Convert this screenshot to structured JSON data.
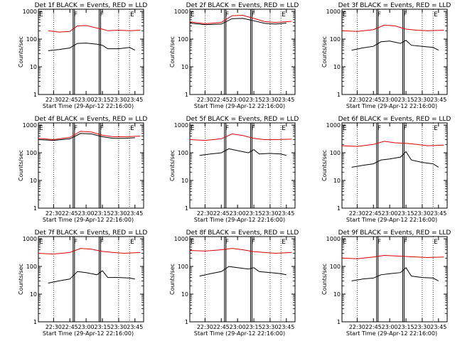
{
  "chart_data": [
    {
      "type": "line",
      "title": "Det 1f BLACK = Events, RED = LLD",
      "xlabel": "Start Time (29-Apr-12 22:16:00)",
      "ylabel": "Counts/sec",
      "x_ticks": [
        "22:30",
        "22:45",
        "23:00",
        "23:15",
        "23:30",
        "23:45"
      ],
      "y_ticks": [
        "1",
        "10",
        "100",
        "1000"
      ],
      "ylim": [
        1,
        1200
      ],
      "y_scale": "log",
      "markers": [
        {
          "label": "E",
          "time": "22:16"
        },
        {
          "label": "F",
          "time": "22:48"
        },
        {
          "label": "F",
          "time": "23:12"
        },
        {
          "label": "E",
          "time": "23:40"
        }
      ],
      "series": [
        {
          "color": "#000000",
          "t": [
            "22:25",
            "22:35",
            "22:45",
            "22:52",
            "23:00",
            "23:10",
            "23:15",
            "23:20",
            "23:30",
            "23:40",
            "23:45"
          ],
          "values": [
            38,
            42,
            48,
            70,
            72,
            65,
            60,
            45,
            45,
            50,
            40
          ]
        },
        {
          "color": "#dd0000",
          "t": [
            "22:25",
            "22:35",
            "22:45",
            "22:52",
            "23:00",
            "23:10",
            "23:15",
            "23:20",
            "23:30",
            "23:40",
            "23:50"
          ],
          "values": [
            200,
            180,
            190,
            300,
            310,
            250,
            230,
            200,
            210,
            200,
            210
          ]
        }
      ]
    },
    {
      "type": "line",
      "title": "Det 2f BLACK = Events, RED = LLD",
      "xlabel": "Start Time (29-Apr-12 22:16:00)",
      "ylabel": "Counts/sec",
      "x_ticks": [
        "22:30",
        "22:45",
        "23:00",
        "23:15",
        "23:30",
        "23:45"
      ],
      "y_ticks": [
        "1",
        "10",
        "100",
        "1000"
      ],
      "ylim": [
        1,
        1200
      ],
      "y_scale": "log",
      "markers": [
        {
          "label": "E",
          "time": "22:16"
        },
        {
          "label": "F",
          "time": "22:48"
        },
        {
          "label": "F",
          "time": "23:12"
        },
        {
          "label": "E",
          "time": "23:40"
        }
      ],
      "series": [
        {
          "color": "#000000",
          "t": [
            "22:16",
            "22:30",
            "22:45",
            "22:55",
            "23:05",
            "23:15",
            "23:25",
            "23:35",
            "23:45"
          ],
          "values": [
            380,
            330,
            350,
            550,
            560,
            460,
            370,
            350,
            380
          ]
        },
        {
          "color": "#dd0000",
          "t": [
            "22:16",
            "22:30",
            "22:45",
            "22:55",
            "23:05",
            "23:15",
            "23:25",
            "23:35",
            "23:50"
          ],
          "values": [
            420,
            360,
            400,
            700,
            720,
            560,
            430,
            400,
            440
          ]
        }
      ]
    },
    {
      "type": "line",
      "title": "Det 3f BLACK = Events, RED = LLD",
      "xlabel": "Start Time (29-Apr-12 22:16:00)",
      "ylabel": "Counts/sec",
      "x_ticks": [
        "22:30",
        "22:45",
        "23:00",
        "23:15",
        "23:30",
        "23:45"
      ],
      "y_ticks": [
        "1",
        "10",
        "100",
        "1000"
      ],
      "ylim": [
        1,
        1200
      ],
      "y_scale": "log",
      "markers": [
        {
          "label": "E",
          "time": "22:16"
        },
        {
          "label": "F",
          "time": "22:48"
        },
        {
          "label": "F",
          "time": "23:12"
        },
        {
          "label": "E",
          "time": "23:40"
        }
      ],
      "series": [
        {
          "color": "#000000",
          "t": [
            "22:25",
            "22:35",
            "22:45",
            "22:52",
            "23:00",
            "23:10",
            "23:15",
            "23:20",
            "23:30",
            "23:40",
            "23:45"
          ],
          "values": [
            40,
            48,
            55,
            80,
            85,
            70,
            90,
            60,
            55,
            50,
            40
          ]
        },
        {
          "color": "#dd0000",
          "t": [
            "22:16",
            "22:30",
            "22:45",
            "22:55",
            "23:05",
            "23:15",
            "23:25",
            "23:35",
            "23:50"
          ],
          "values": [
            200,
            190,
            220,
            320,
            300,
            230,
            210,
            200,
            210
          ]
        }
      ]
    },
    {
      "type": "line",
      "title": "Det 4f BLACK = Events, RED = LLD",
      "xlabel": "Start Time (29-Apr-12 22:16:00)",
      "ylabel": "Counts/sec",
      "x_ticks": [
        "22:30",
        "22:45",
        "23:00",
        "23:15",
        "23:30",
        "23:45"
      ],
      "y_ticks": [
        "1",
        "10",
        "100",
        "1000"
      ],
      "ylim": [
        1,
        1200
      ],
      "y_scale": "log",
      "markers": [
        {
          "label": "E",
          "time": "22:16"
        },
        {
          "label": "F",
          "time": "22:48"
        },
        {
          "label": "F",
          "time": "23:12"
        },
        {
          "label": "E",
          "time": "23:40"
        }
      ],
      "series": [
        {
          "color": "#000000",
          "t": [
            "22:16",
            "22:30",
            "22:45",
            "22:55",
            "23:05",
            "23:15",
            "23:25",
            "23:35",
            "23:45"
          ],
          "values": [
            300,
            280,
            320,
            500,
            480,
            380,
            330,
            330,
            350
          ]
        },
        {
          "color": "#dd0000",
          "t": [
            "22:16",
            "22:30",
            "22:45",
            "22:55",
            "23:05",
            "23:15",
            "23:25",
            "23:35",
            "23:50"
          ],
          "values": [
            330,
            300,
            360,
            600,
            560,
            430,
            380,
            380,
            400
          ]
        }
      ]
    },
    {
      "type": "line",
      "title": "Det 5f BLACK = Events, RED = LLD",
      "xlabel": "Start Time (29-Apr-12 22:16:00)",
      "ylabel": "Counts/sec",
      "x_ticks": [
        "22:30",
        "22:45",
        "23:00",
        "23:15",
        "23:30",
        "23:45"
      ],
      "y_ticks": [
        "1",
        "10",
        "100",
        "1000"
      ],
      "ylim": [
        1,
        1200
      ],
      "y_scale": "log",
      "markers": [
        {
          "label": "E",
          "time": "22:16"
        },
        {
          "label": "F",
          "time": "22:48"
        },
        {
          "label": "F",
          "time": "23:12"
        },
        {
          "label": "E",
          "time": "23:40"
        }
      ],
      "series": [
        {
          "color": "#000000",
          "t": [
            "22:25",
            "22:35",
            "22:45",
            "22:52",
            "23:00",
            "23:10",
            "23:15",
            "23:20",
            "23:30",
            "23:40",
            "23:45"
          ],
          "values": [
            80,
            90,
            100,
            140,
            120,
            100,
            130,
            90,
            95,
            90,
            80
          ]
        },
        {
          "color": "#dd0000",
          "t": [
            "22:16",
            "22:30",
            "22:45",
            "22:55",
            "23:05",
            "23:15",
            "23:25",
            "23:35",
            "23:50"
          ],
          "values": [
            300,
            280,
            320,
            480,
            420,
            330,
            300,
            300,
            310
          ]
        }
      ]
    },
    {
      "type": "line",
      "title": "Det 6f BLACK = Events, RED = LLD",
      "xlabel": "Start Time (29-Apr-12 22:16:00)",
      "ylabel": "Counts/sec",
      "x_ticks": [
        "22:30",
        "22:45",
        "23:00",
        "23:15",
        "23:30",
        "23:45"
      ],
      "y_ticks": [
        "1",
        "10",
        "100",
        "1000"
      ],
      "ylim": [
        1,
        1200
      ],
      "y_scale": "log",
      "markers": [
        {
          "label": "E",
          "time": "22:16"
        },
        {
          "label": "F",
          "time": "22:48"
        },
        {
          "label": "F",
          "time": "23:12"
        },
        {
          "label": "E",
          "time": "23:40"
        }
      ],
      "series": [
        {
          "color": "#000000",
          "t": [
            "22:25",
            "22:35",
            "22:45",
            "22:52",
            "23:00",
            "23:10",
            "23:15",
            "23:20",
            "23:30",
            "23:40",
            "23:45"
          ],
          "values": [
            30,
            35,
            40,
            55,
            60,
            70,
            110,
            55,
            45,
            40,
            30
          ]
        },
        {
          "color": "#dd0000",
          "t": [
            "22:16",
            "22:30",
            "22:45",
            "22:55",
            "23:05",
            "23:15",
            "23:25",
            "23:35",
            "23:50"
          ],
          "values": [
            180,
            170,
            200,
            260,
            230,
            220,
            200,
            180,
            190
          ]
        }
      ]
    },
    {
      "type": "line",
      "title": "Det 7f BLACK = Events, RED = LLD",
      "xlabel": "Start Time (29-Apr-12 22:16:00)",
      "ylabel": "Counts/sec",
      "x_ticks": [
        "22:30",
        "22:45",
        "23:00",
        "23:15",
        "23:30",
        "23:45"
      ],
      "y_ticks": [
        "1",
        "10",
        "100",
        "1000"
      ],
      "ylim": [
        1,
        1200
      ],
      "y_scale": "log",
      "markers": [
        {
          "label": "E",
          "time": "22:16"
        },
        {
          "label": "F",
          "time": "22:48"
        },
        {
          "label": "F",
          "time": "23:12"
        },
        {
          "label": "E",
          "time": "23:40"
        }
      ],
      "series": [
        {
          "color": "#000000",
          "t": [
            "22:25",
            "22:35",
            "22:45",
            "22:52",
            "23:00",
            "23:10",
            "23:15",
            "23:20",
            "23:30",
            "23:40",
            "23:45"
          ],
          "values": [
            25,
            30,
            35,
            65,
            60,
            50,
            70,
            40,
            40,
            38,
            35
          ]
        },
        {
          "color": "#dd0000",
          "t": [
            "22:16",
            "22:30",
            "22:45",
            "22:55",
            "23:05",
            "23:15",
            "23:25",
            "23:35",
            "23:50"
          ],
          "values": [
            300,
            280,
            320,
            450,
            420,
            350,
            320,
            300,
            320
          ]
        }
      ]
    },
    {
      "type": "line",
      "title": "Det 8f BLACK = Events, RED = LLD",
      "xlabel": "Start Time (29-Apr-12 22:16:00)",
      "ylabel": "Counts/sec",
      "x_ticks": [
        "22:30",
        "22:45",
        "23:00",
        "23:15",
        "23:30",
        "23:45"
      ],
      "y_ticks": [
        "1",
        "10",
        "100",
        "1000"
      ],
      "ylim": [
        1,
        1200
      ],
      "y_scale": "log",
      "markers": [
        {
          "label": "E",
          "time": "22:16"
        },
        {
          "label": "F",
          "time": "22:48"
        },
        {
          "label": "F",
          "time": "23:12"
        },
        {
          "label": "E",
          "time": "23:40"
        }
      ],
      "series": [
        {
          "color": "#000000",
          "t": [
            "22:25",
            "22:35",
            "22:45",
            "22:52",
            "23:00",
            "23:10",
            "23:15",
            "23:20",
            "23:30",
            "23:40",
            "23:45"
          ],
          "values": [
            45,
            55,
            65,
            100,
            90,
            80,
            90,
            65,
            60,
            55,
            50
          ]
        },
        {
          "color": "#dd0000",
          "t": [
            "22:16",
            "22:30",
            "22:45",
            "22:55",
            "23:05",
            "23:15",
            "23:25",
            "23:35",
            "23:50"
          ],
          "values": [
            380,
            360,
            400,
            450,
            400,
            340,
            320,
            300,
            320
          ]
        }
      ]
    },
    {
      "type": "line",
      "title": "Det 9f BLACK = Events, RED = LLD",
      "xlabel": "Start Time (29-Apr-12 22:16:00)",
      "ylabel": "Counts/sec",
      "x_ticks": [
        "22:30",
        "22:45",
        "23:00",
        "23:15",
        "23:30",
        "23:45"
      ],
      "y_ticks": [
        "1",
        "10",
        "100",
        "1000"
      ],
      "ylim": [
        1,
        1200
      ],
      "y_scale": "log",
      "markers": [
        {
          "label": "E",
          "time": "22:16"
        },
        {
          "label": "F",
          "time": "22:48"
        },
        {
          "label": "F",
          "time": "23:12"
        },
        {
          "label": "E",
          "time": "23:40"
        }
      ],
      "series": [
        {
          "color": "#000000",
          "t": [
            "22:25",
            "22:35",
            "22:45",
            "22:52",
            "23:00",
            "23:10",
            "23:15",
            "23:20",
            "23:30",
            "23:40",
            "23:45"
          ],
          "values": [
            30,
            35,
            38,
            50,
            55,
            60,
            90,
            45,
            40,
            38,
            30
          ]
        },
        {
          "color": "#dd0000",
          "t": [
            "22:16",
            "22:30",
            "22:45",
            "22:55",
            "23:05",
            "23:15",
            "23:25",
            "23:35",
            "23:50"
          ],
          "values": [
            200,
            190,
            220,
            250,
            240,
            230,
            220,
            210,
            220
          ]
        }
      ]
    }
  ]
}
